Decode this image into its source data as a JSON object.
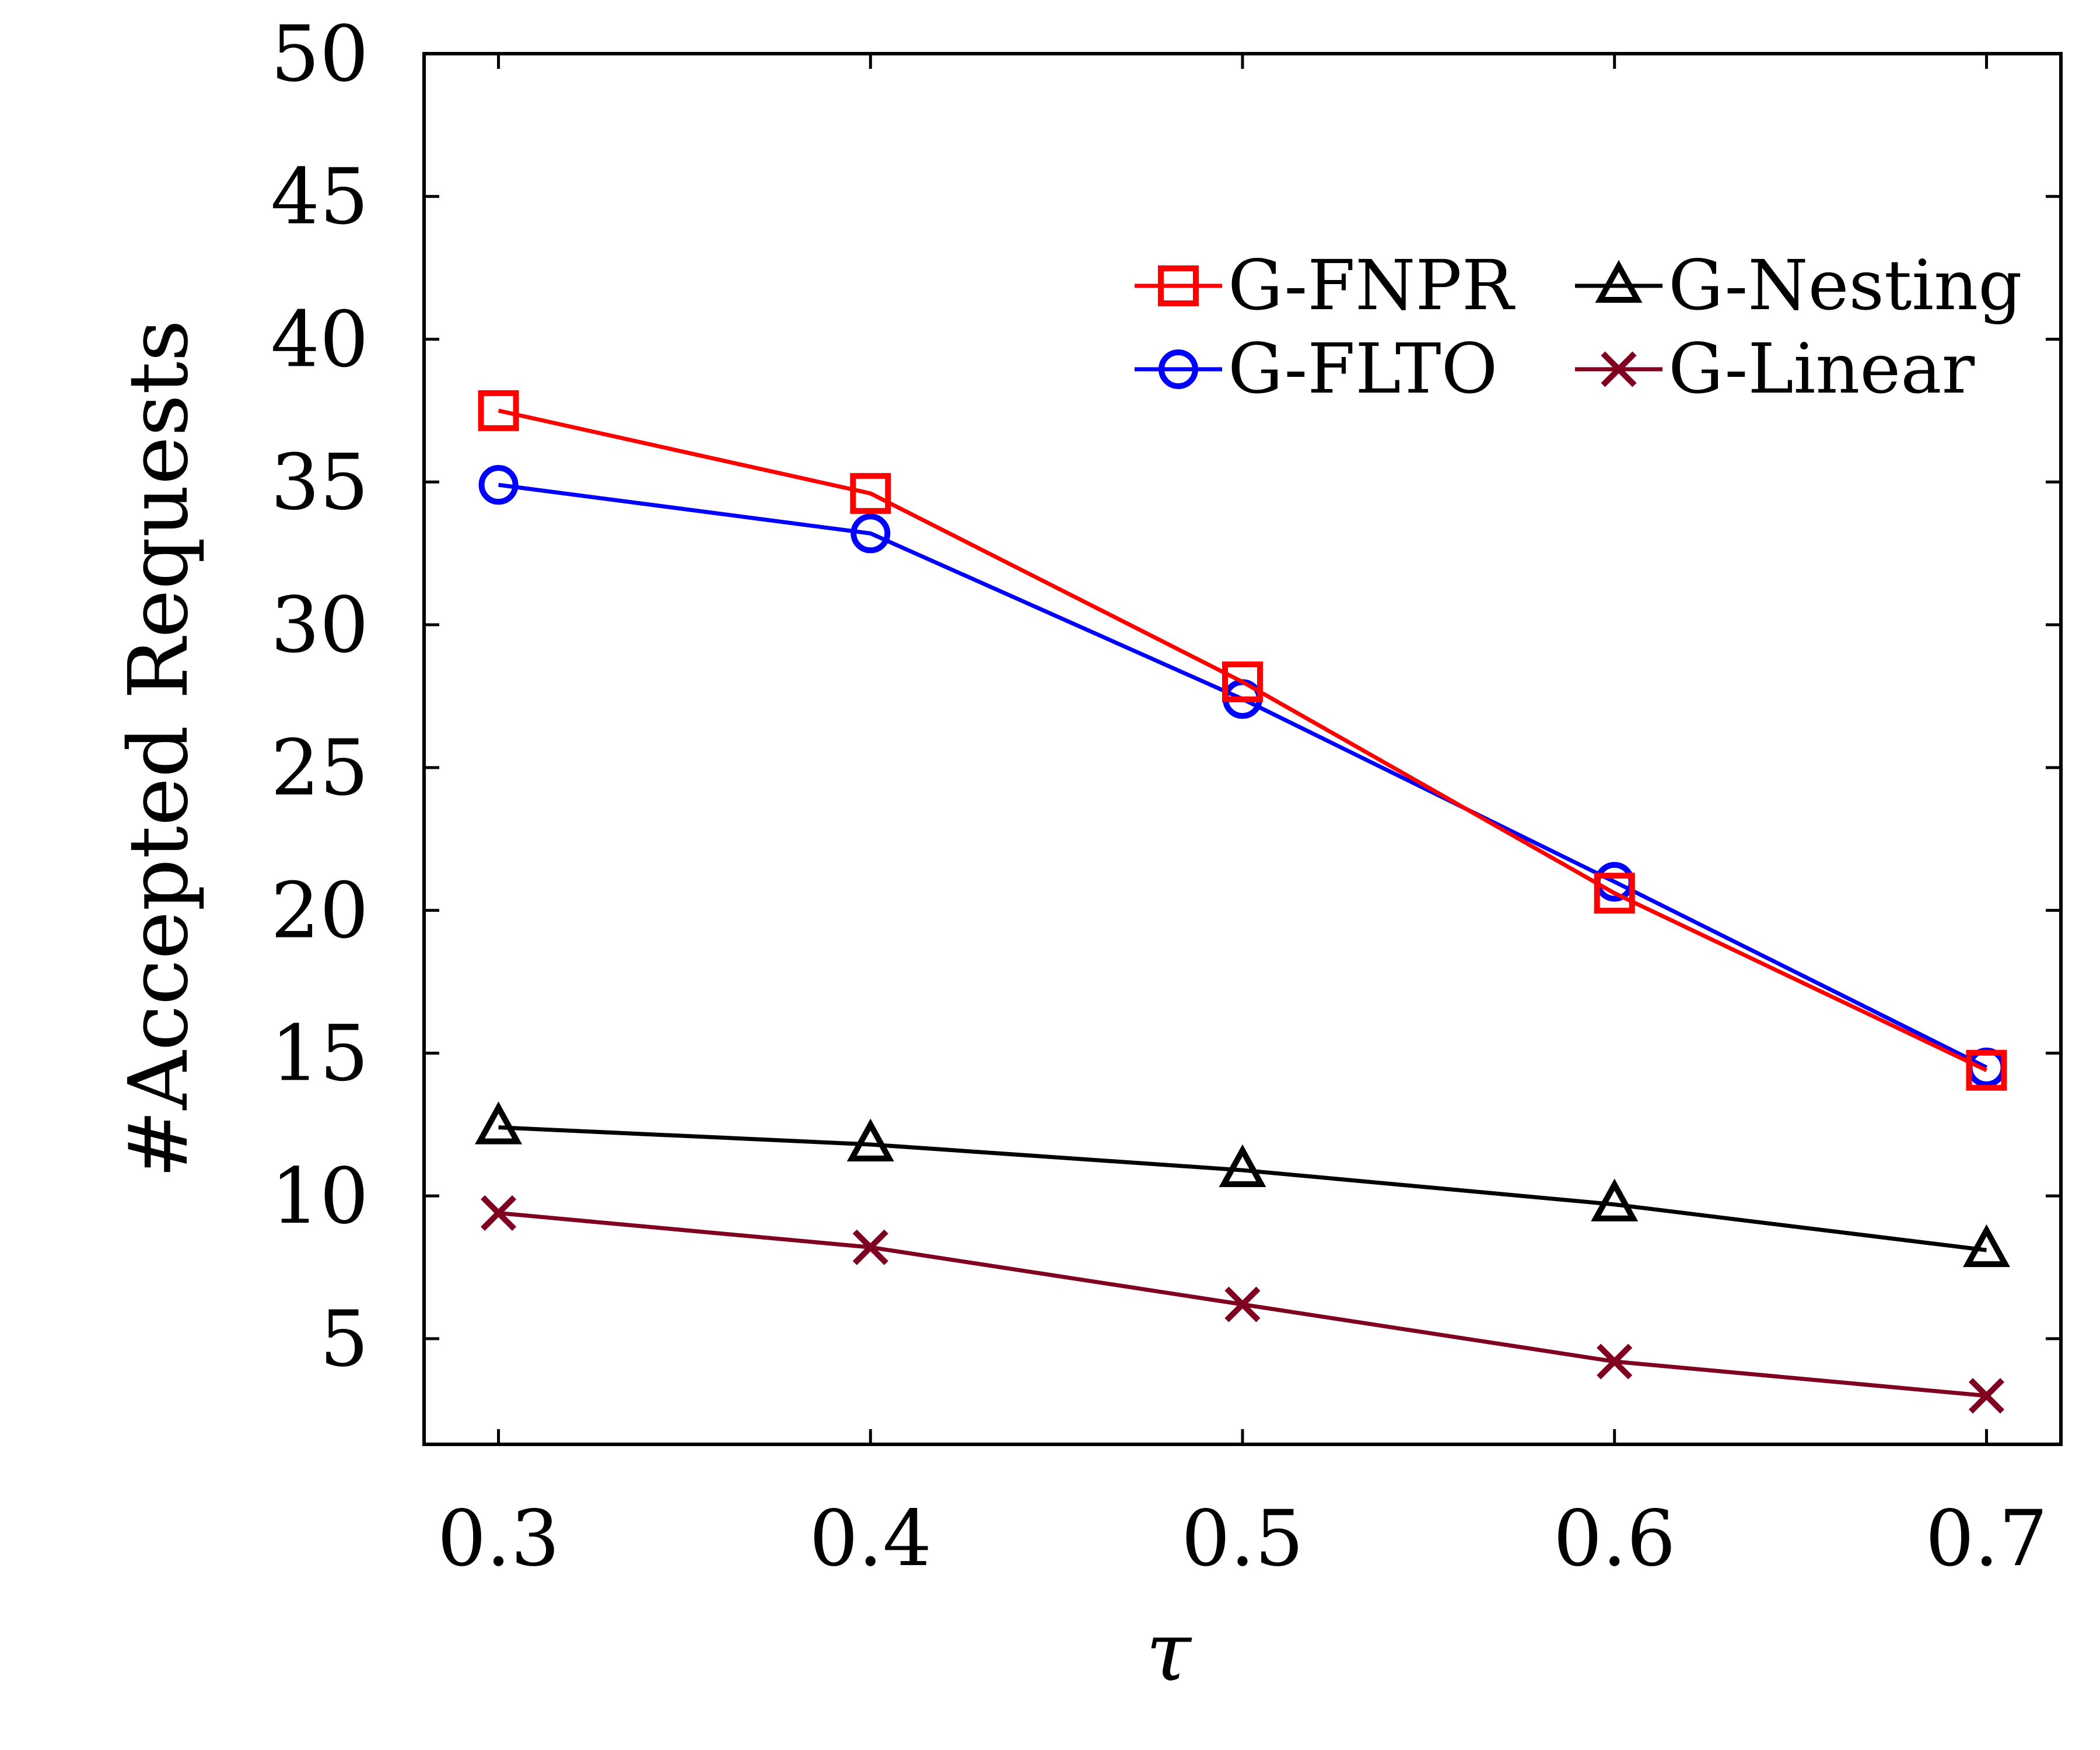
{
  "chart_data": {
    "type": "line",
    "x": [
      0.3,
      0.4,
      0.5,
      0.6,
      0.7
    ],
    "x_tick_labels": [
      "0.3",
      "0.4",
      "0.5",
      "0.6",
      "0.7"
    ],
    "y_ticks": [
      5,
      10,
      15,
      20,
      25,
      30,
      35,
      40,
      45,
      50
    ],
    "y_tick_labels": [
      "5",
      "10",
      "15",
      "20",
      "25",
      "30",
      "35",
      "40",
      "45",
      "50"
    ],
    "xlim": [
      0.28,
      0.72
    ],
    "ylim": [
      1.3,
      50
    ],
    "xlabel": "τ",
    "ylabel": "#Accepted Requests",
    "grid": false,
    "legend_position": "top-right",
    "series": [
      {
        "name": "G-FNPR",
        "color": "#ff0000",
        "marker": "square",
        "values": [
          37.5,
          34.6,
          28.0,
          20.6,
          14.4
        ]
      },
      {
        "name": "G-FLTO",
        "color": "#0000ff",
        "marker": "circle",
        "values": [
          34.9,
          33.2,
          27.4,
          21.0,
          14.5
        ]
      },
      {
        "name": "G-Nesting",
        "color": "#000000",
        "marker": "triangle",
        "values": [
          12.4,
          11.8,
          10.9,
          9.7,
          8.1
        ]
      },
      {
        "name": "G-Linear",
        "color": "#800020",
        "marker": "x",
        "values": [
          9.4,
          8.2,
          6.2,
          4.2,
          3.0
        ]
      }
    ]
  }
}
